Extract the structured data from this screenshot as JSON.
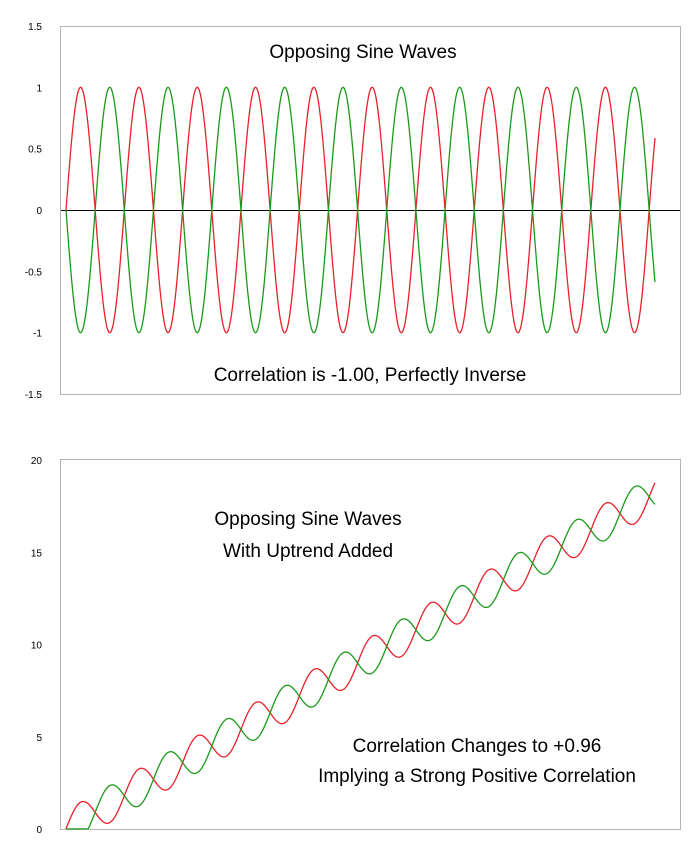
{
  "colors": {
    "red": "#e8202a",
    "green": "#1a9a1a",
    "axis": "#000000",
    "frame": "#b4b4b4"
  },
  "chart_data": [
    {
      "type": "line",
      "title": "Opposing Sine Waves",
      "annotations": [
        "Correlation is -1.00, Perfectly Inverse"
      ],
      "xlabel": "",
      "ylabel": "",
      "ylim": [
        -1.5,
        1.5
      ],
      "yticks": [
        "1.5",
        "1",
        "0.5",
        "0",
        "-0.5",
        "-1",
        "-1.5"
      ],
      "ytick_values": [
        1.5,
        1,
        0.5,
        0,
        -0.5,
        -1,
        -1.5
      ],
      "x_range": [
        0,
        20.2
      ],
      "zero_line": true,
      "grid": false,
      "series": [
        {
          "color": "red",
          "formula": "sin(pi*x)",
          "amplitude": 1,
          "period": 2,
          "phase": 0,
          "trend": 0
        },
        {
          "color": "green",
          "formula": "-sin(pi*x)",
          "amplitude": -1,
          "period": 2,
          "phase": 0,
          "trend": 0
        }
      ]
    },
    {
      "type": "line",
      "title": "Opposing Sine Waves With Uptrend Added",
      "title_lines": [
        "Opposing Sine Waves",
        "With Uptrend Added"
      ],
      "annotations": [
        "Correlation Changes to +0.96",
        "Implying a Strong Positive Correlation"
      ],
      "xlabel": "",
      "ylabel": "",
      "ylim": [
        0,
        20
      ],
      "yticks": [
        "20",
        "15",
        "10",
        "5",
        "0"
      ],
      "ytick_values": [
        20,
        15,
        10,
        5,
        0
      ],
      "x_range": [
        0,
        20.2
      ],
      "zero_line": false,
      "grid": false,
      "series": [
        {
          "color": "red",
          "formula": "0.9*x + sin(pi*x)",
          "amplitude": 1,
          "period": 2,
          "phase": 0,
          "trend": 0.9
        },
        {
          "color": "green",
          "formula": "0.9*x - sin(pi*x)",
          "amplitude": -1,
          "period": 2,
          "phase": 0,
          "trend": 0.9
        }
      ]
    }
  ]
}
